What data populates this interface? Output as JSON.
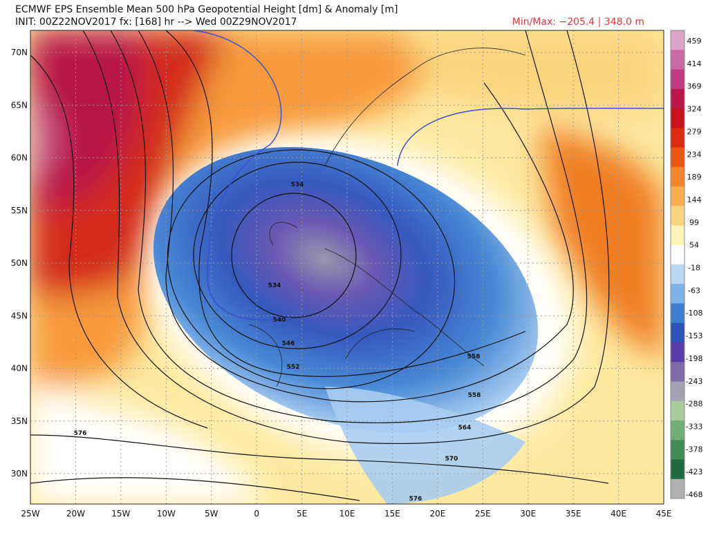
{
  "header": {
    "title": "ECMWF EPS Ensemble Mean 500 hPa Geopotential Height [dm] & Anomaly [m]",
    "init": "INIT: 00Z22NOV2017 fx: [168] hr --> Wed 00Z29NOV2017",
    "minmax": "Min/Max: −205.4 | 348.0 m"
  },
  "map": {
    "lat_labels": [
      "70N",
      "65N",
      "60N",
      "55N",
      "50N",
      "45N",
      "40N",
      "35N",
      "30N"
    ],
    "lon_labels": [
      "25W",
      "20W",
      "15W",
      "10W",
      "5W",
      "0",
      "5E",
      "10E",
      "15E",
      "20E",
      "25E",
      "30E",
      "35E",
      "40E",
      "45E"
    ],
    "contour_labels": [
      534,
      534,
      540,
      546,
      552,
      558,
      558,
      564,
      570,
      576,
      576
    ]
  },
  "colorbar": {
    "labels": [
      459,
      414,
      369,
      324,
      279,
      234,
      189,
      144,
      99,
      54,
      -18,
      -63,
      -108,
      -153,
      -198,
      -243,
      -288,
      -333,
      -378,
      -423,
      -468
    ],
    "colors": [
      "#d9a6c8",
      "#cc6aa6",
      "#c13c7e",
      "#b8184a",
      "#c9131c",
      "#dc2c10",
      "#ec5710",
      "#f5842a",
      "#f8ad52",
      "#fbd47e",
      "#fdf2b8",
      "#ffffff",
      "#b9d6f2",
      "#7fb2e6",
      "#3f80d0",
      "#2c55b8",
      "#5a3da8",
      "#7d6aa8",
      "#a6a0b4",
      "#a8cc9c",
      "#6faf74",
      "#3f8c55",
      "#1f6b3f",
      "#b0b0b0"
    ]
  }
}
